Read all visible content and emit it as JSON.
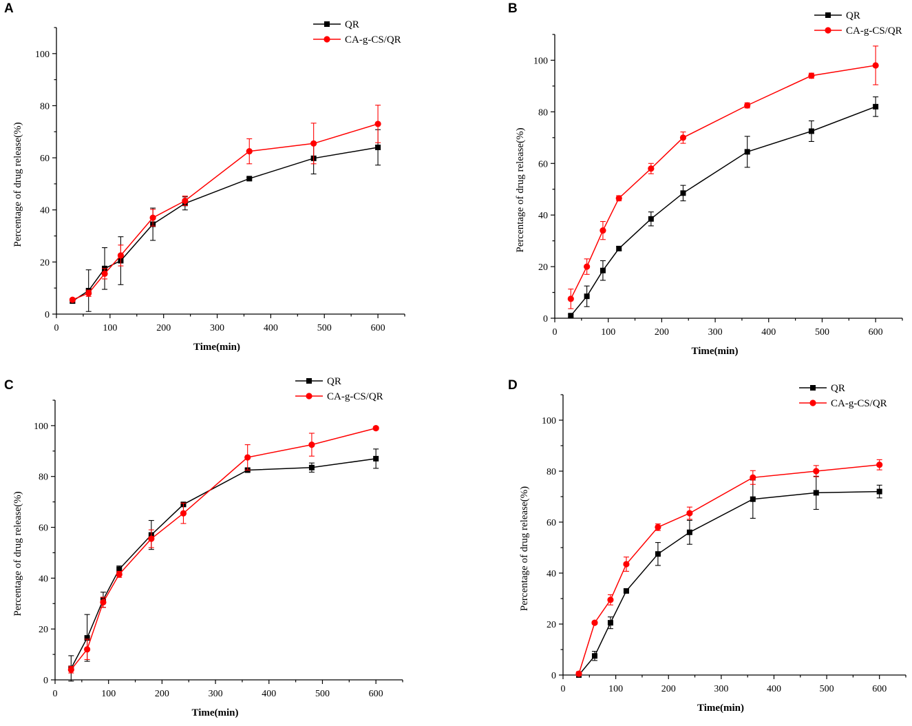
{
  "chart_data": [
    {
      "type": "line",
      "panel": "A",
      "xlabel": "Time(min)",
      "ylabel": "Percentage of drug release(%)",
      "xlim": [
        0,
        650
      ],
      "ylim": [
        0,
        110
      ],
      "xticks": [
        0,
        100,
        200,
        300,
        400,
        500,
        600
      ],
      "yticks": [
        0,
        20,
        40,
        60,
        80,
        100
      ],
      "legend": "top-center",
      "series": [
        {
          "name": "QR",
          "color": "#000000",
          "marker": "square",
          "x": [
            30,
            60,
            90,
            120,
            180,
            240,
            360,
            480,
            600
          ],
          "y": [
            5,
            9,
            17.5,
            20.5,
            34.5,
            42.5,
            52,
            59.8,
            64
          ],
          "err": [
            0.8,
            8,
            8,
            9.2,
            6.2,
            2.5,
            0.5,
            6,
            6.8
          ]
        },
        {
          "name": "CA-g-CS/QR",
          "color": "#ff0000",
          "marker": "circle",
          "x": [
            30,
            60,
            90,
            120,
            180,
            240,
            360,
            480,
            600
          ],
          "y": [
            5.5,
            8,
            15.5,
            22.5,
            37,
            43.5,
            62.5,
            65.5,
            73
          ],
          "err": [
            0.5,
            1.2,
            2,
            4,
            3.2,
            1.8,
            4.8,
            7.8,
            7.2
          ]
        }
      ]
    },
    {
      "type": "line",
      "panel": "B",
      "xlabel": "Time(min)",
      "ylabel": "Percentage of drug release(%)",
      "xlim": [
        0,
        650
      ],
      "ylim": [
        0,
        110
      ],
      "xticks": [
        0,
        100,
        200,
        300,
        400,
        500,
        600
      ],
      "yticks": [
        0,
        20,
        40,
        60,
        80,
        100
      ],
      "legend": "top-center",
      "series": [
        {
          "name": "QR",
          "color": "#000000",
          "marker": "square",
          "x": [
            30,
            60,
            90,
            120,
            180,
            240,
            360,
            480,
            600
          ],
          "y": [
            1,
            8.5,
            18.5,
            27,
            38.5,
            48.5,
            64.5,
            72.5,
            82
          ],
          "err": [
            0.5,
            4,
            3.8,
            0.8,
            2.7,
            3,
            6,
            4,
            3.8
          ]
        },
        {
          "name": "CA-g-CS/QR",
          "color": "#ff0000",
          "marker": "circle",
          "x": [
            30,
            60,
            90,
            120,
            180,
            240,
            360,
            480,
            600
          ],
          "y": [
            7.5,
            20,
            34,
            46.5,
            58,
            70,
            82.5,
            94,
            98
          ],
          "err": [
            3.8,
            3,
            3.5,
            1,
            2,
            2.2,
            1,
            1,
            7.5
          ]
        }
      ]
    },
    {
      "type": "line",
      "panel": "C",
      "xlabel": "Time(min)",
      "ylabel": "Percentage of drug release(%)",
      "xlim": [
        0,
        650
      ],
      "ylim": [
        0,
        110
      ],
      "xticks": [
        0,
        100,
        200,
        300,
        400,
        500,
        600
      ],
      "yticks": [
        0,
        20,
        40,
        60,
        80,
        100
      ],
      "legend": "top-center",
      "series": [
        {
          "name": "QR",
          "color": "#000000",
          "marker": "square",
          "x": [
            30,
            60,
            90,
            120,
            180,
            240,
            360,
            480,
            600
          ],
          "y": [
            4.5,
            16.5,
            31.5,
            43.5,
            57,
            69,
            82.5,
            83.5,
            87
          ],
          "err": [
            5,
            9.2,
            3,
            1.3,
            5.7,
            0.8,
            0.5,
            1.8,
            3.8
          ]
        },
        {
          "name": "CA-g-CS/QR",
          "color": "#ff0000",
          "marker": "circle",
          "x": [
            30,
            60,
            90,
            120,
            180,
            240,
            360,
            480,
            600
          ],
          "y": [
            4,
            12,
            30.5,
            41.5,
            55.5,
            65.5,
            87.5,
            92.5,
            99
          ],
          "err": [
            1.3,
            4,
            2,
            1.2,
            3.5,
            4,
            5,
            4.5,
            0.6
          ]
        }
      ]
    },
    {
      "type": "line",
      "panel": "D",
      "xlabel": "Time(min)",
      "ylabel": "Percentage of drug release(%)",
      "xlim": [
        0,
        650
      ],
      "ylim": [
        0,
        110
      ],
      "xticks": [
        0,
        100,
        200,
        300,
        400,
        500,
        600
      ],
      "yticks": [
        0,
        20,
        40,
        60,
        80,
        100
      ],
      "legend": "top-center",
      "series": [
        {
          "name": "QR",
          "color": "#000000",
          "marker": "square",
          "x": [
            30,
            60,
            90,
            120,
            180,
            240,
            360,
            480,
            600
          ],
          "y": [
            0,
            7.5,
            20.5,
            33,
            47.5,
            56,
            69,
            71.5,
            72
          ],
          "err": [
            0.3,
            1.8,
            2.3,
            0.6,
            4.5,
            4.7,
            7.5,
            6.5,
            2.5
          ]
        },
        {
          "name": "CA-g-CS/QR",
          "color": "#ff0000",
          "marker": "circle",
          "x": [
            30,
            60,
            90,
            120,
            180,
            240,
            360,
            480,
            600
          ],
          "y": [
            0.5,
            20.5,
            29.5,
            43.5,
            58,
            63.5,
            77.5,
            80,
            82.5
          ],
          "err": [
            0.8,
            0.6,
            2,
            2.8,
            1.3,
            2.4,
            2.7,
            2.2,
            2
          ]
        }
      ]
    }
  ]
}
